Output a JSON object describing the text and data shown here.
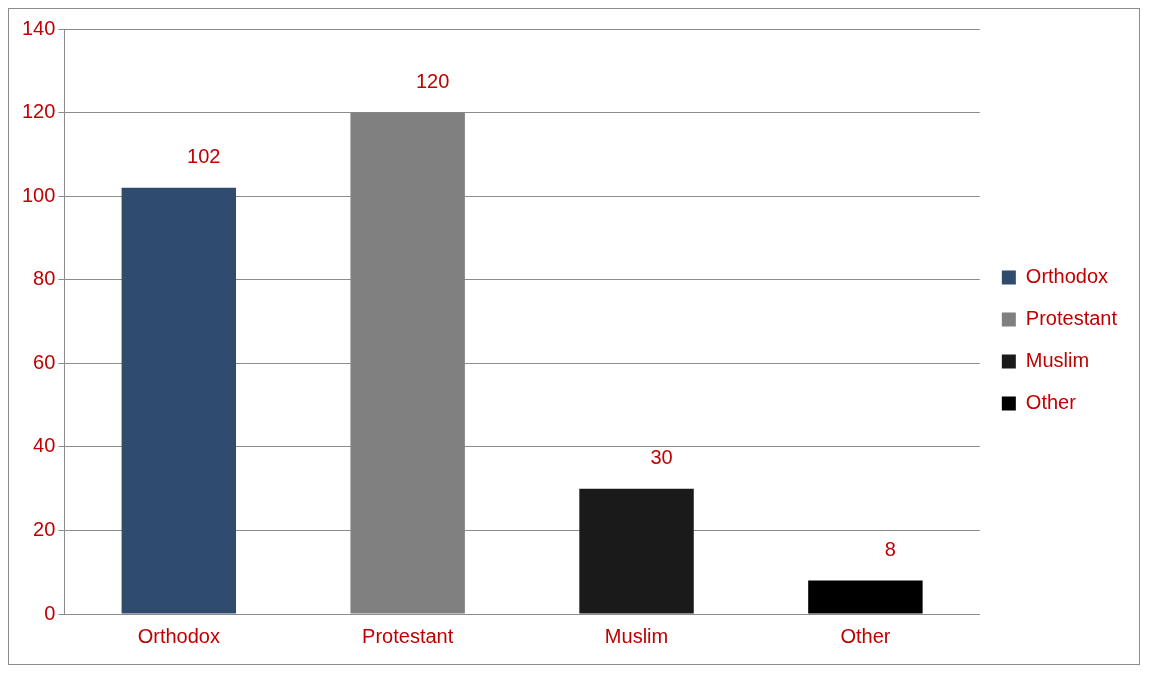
{
  "chart_data": {
    "type": "bar",
    "categories": [
      "Orthodox",
      "Protestant",
      "Muslim",
      "Other"
    ],
    "series": [
      {
        "name": "Orthodox",
        "color": "#2f4b6e",
        "values": [
          102,
          null,
          null,
          null
        ]
      },
      {
        "name": "Protestant",
        "color": "#808080",
        "values": [
          null,
          120,
          null,
          null
        ]
      },
      {
        "name": "Muslim",
        "color": "#1a1a1a",
        "values": [
          null,
          null,
          30,
          null
        ]
      },
      {
        "name": "Other",
        "color": "#000000",
        "values": [
          null,
          null,
          null,
          8
        ]
      }
    ],
    "ylim": [
      0,
      140
    ],
    "yticks": [
      0,
      20,
      40,
      60,
      80,
      100,
      120,
      140
    ],
    "grid": "y",
    "legend": "right",
    "data_labels": true
  }
}
